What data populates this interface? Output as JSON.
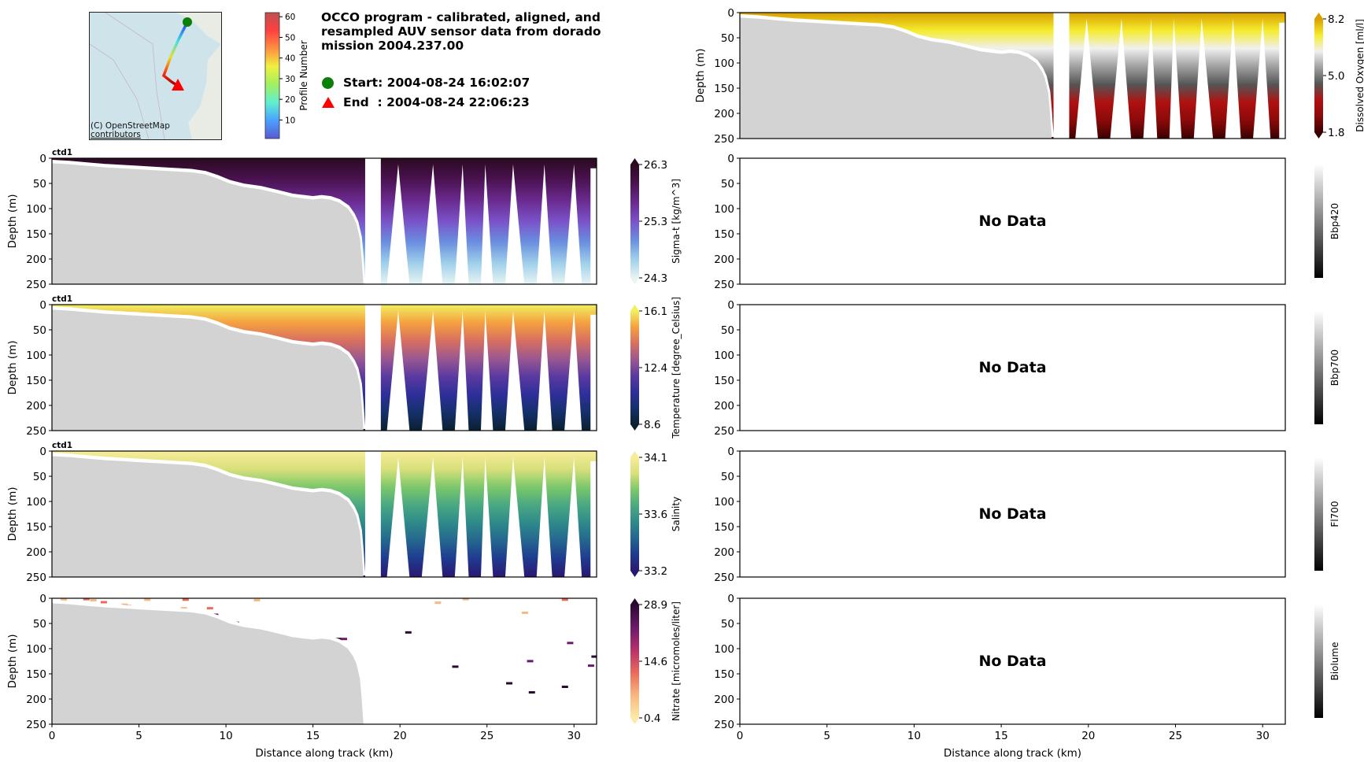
{
  "header": {
    "title": "OCCO program - calibrated, aligned, and resampled AUV sensor data from dorado mission 2004.237.00",
    "start_label": "Start: 2004-08-24 16:02:07",
    "end_label": "End  : 2004-08-24 22:06:23",
    "start_marker_color": "#0a800a",
    "end_marker_color": "#ff0000"
  },
  "map": {
    "credit_line1": "(C) OpenStreetMap",
    "credit_line2": "contributors",
    "colorbar_label": "Profile Number",
    "colorbar_ticks": [
      "10",
      "20",
      "30",
      "40",
      "50",
      "60"
    ],
    "colorbar_range": [
      1,
      62
    ]
  },
  "chart_data": [
    {
      "type": "heatmap",
      "id": "dissolved_oxygen",
      "panel_label": "",
      "xlabel": "",
      "ylabel": "Depth (m)",
      "xlim": [
        0,
        31.3
      ],
      "ylim": [
        250,
        0
      ],
      "yticks": [
        "0",
        "50",
        "100",
        "150",
        "200",
        "250"
      ],
      "xticks": [],
      "colorbar_label": "Dissolved Oxygen [ml/l]",
      "colorbar_ticks": [
        "8.2",
        "5.0",
        "1.8"
      ],
      "colorbar_range": [
        1.8,
        8.2
      ],
      "colormap": [
        "#3a0000",
        "#8b0a0a",
        "#b01010",
        "#555555",
        "#a0a0a0",
        "#f0f0f0",
        "#f5ec2e",
        "#d9a000"
      ],
      "no_data": false,
      "has_data": true
    },
    {
      "type": "heatmap",
      "id": "sigma_t",
      "panel_label": "ctd1",
      "ylabel": "Depth (m)",
      "xlim": [
        0,
        31.3
      ],
      "ylim": [
        250,
        0
      ],
      "yticks": [
        "0",
        "50",
        "100",
        "150",
        "200",
        "250"
      ],
      "colorbar_label": "Sigma-t [kg/m^3]",
      "colorbar_ticks": [
        "26.3",
        "25.3",
        "24.3"
      ],
      "colorbar_range": [
        24.3,
        26.3
      ],
      "colormap": [
        "#e8f4f4",
        "#9fd0ea",
        "#6a8fe0",
        "#7a52c8",
        "#6a2a8e",
        "#4a1250",
        "#2a0a20"
      ],
      "has_data": true
    },
    {
      "type": "heatmap",
      "id": "temperature",
      "panel_label": "ctd1",
      "ylabel": "Depth (m)",
      "xlim": [
        0,
        31.3
      ],
      "ylim": [
        250,
        0
      ],
      "yticks": [
        "0",
        "50",
        "100",
        "150",
        "200",
        "250"
      ],
      "colorbar_label": "Temperature [degree_Celsius]",
      "colorbar_ticks": [
        "16.1",
        "12.4",
        "8.6"
      ],
      "colorbar_range": [
        8.6,
        16.1
      ],
      "colormap": [
        "#0a2030",
        "#15306a",
        "#2e2f9a",
        "#5a3aa0",
        "#9a5890",
        "#d87060",
        "#f5a040",
        "#f0f060"
      ],
      "has_data": true
    },
    {
      "type": "heatmap",
      "id": "salinity",
      "panel_label": "ctd1",
      "ylabel": "Depth (m)",
      "xlim": [
        0,
        31.3
      ],
      "ylim": [
        250,
        0
      ],
      "yticks": [
        "0",
        "50",
        "100",
        "150",
        "200",
        "250"
      ],
      "colorbar_label": "Salinity",
      "colorbar_ticks": [
        "34.1",
        "33.6",
        "33.2"
      ],
      "colorbar_range": [
        33.2,
        34.1
      ],
      "colormap": [
        "#2a1870",
        "#1f3a8f",
        "#24658f",
        "#2e8a8a",
        "#4aa882",
        "#7cc86a",
        "#d8e07a",
        "#f8ec9a"
      ],
      "has_data": true
    },
    {
      "type": "heatmap",
      "id": "nitrate",
      "panel_label": "",
      "xlabel": "Distance along track (km)",
      "ylabel": "Depth (m)",
      "xlim": [
        0,
        31.3
      ],
      "ylim": [
        250,
        0
      ],
      "xticks": [
        "0",
        "5",
        "10",
        "15",
        "20",
        "25",
        "30"
      ],
      "yticks": [
        "0",
        "50",
        "100",
        "150",
        "200",
        "250"
      ],
      "colorbar_label": "Nitrate [micromoles/liter]",
      "colorbar_ticks": [
        "28.9",
        "14.6",
        "0.4"
      ],
      "colorbar_range": [
        0.4,
        28.9
      ],
      "colormap": [
        "#fdeaa8",
        "#f8b880",
        "#ea6a5a",
        "#b8306a",
        "#6a1a6a",
        "#2a0a30"
      ],
      "has_data": true,
      "sparse_points_km_m": [
        [
          0.5,
          2
        ],
        [
          1.8,
          1
        ],
        [
          2.2,
          3
        ],
        [
          2.8,
          7
        ],
        [
          4.0,
          12
        ],
        [
          4.2,
          15
        ],
        [
          5.3,
          2
        ],
        [
          5.4,
          20
        ],
        [
          6.2,
          22
        ],
        [
          7.5,
          2
        ],
        [
          7.4,
          19
        ],
        [
          8.9,
          19
        ],
        [
          9.2,
          32
        ],
        [
          10.4,
          48
        ],
        [
          11.6,
          3
        ],
        [
          16.3,
          80
        ],
        [
          16.6,
          80
        ],
        [
          20.3,
          67
        ],
        [
          22.0,
          8
        ],
        [
          23.0,
          135
        ],
        [
          23.6,
          1
        ],
        [
          26.1,
          168
        ],
        [
          27.0,
          28
        ],
        [
          27.4,
          186
        ],
        [
          27.3,
          124
        ],
        [
          29.3,
          2
        ],
        [
          29.6,
          88
        ],
        [
          29.3,
          175
        ],
        [
          30.8,
          133
        ],
        [
          31.0,
          115
        ]
      ]
    },
    {
      "type": "heatmap",
      "id": "bbp420",
      "ylabel": "",
      "xlim": [
        0,
        31.3
      ],
      "ylim": [
        250,
        0
      ],
      "yticks": [
        "0",
        "50",
        "100",
        "150",
        "200",
        "250"
      ],
      "colorbar_label": "Bbp420",
      "colorbar_ticks": [],
      "colormap": [
        "#000000",
        "#ffffff"
      ],
      "has_data": false,
      "no_data_text": "No Data"
    },
    {
      "type": "heatmap",
      "id": "bbp700",
      "ylabel": "",
      "xlim": [
        0,
        31.3
      ],
      "ylim": [
        250,
        0
      ],
      "yticks": [
        "0",
        "50",
        "100",
        "150",
        "200",
        "250"
      ],
      "colorbar_label": "Bbp700",
      "colorbar_ticks": [],
      "colormap": [
        "#000000",
        "#ffffff"
      ],
      "has_data": false,
      "no_data_text": "No Data"
    },
    {
      "type": "heatmap",
      "id": "fl700",
      "ylabel": "",
      "xlim": [
        0,
        31.3
      ],
      "ylim": [
        250,
        0
      ],
      "yticks": [
        "0",
        "50",
        "100",
        "150",
        "200",
        "250"
      ],
      "colorbar_label": "Fl700",
      "colorbar_ticks": [],
      "colormap": [
        "#000000",
        "#ffffff"
      ],
      "has_data": false,
      "no_data_text": "No Data"
    },
    {
      "type": "heatmap",
      "id": "biolume",
      "xlabel": "Distance along track (km)",
      "ylabel": "",
      "xlim": [
        0,
        31.3
      ],
      "ylim": [
        250,
        0
      ],
      "xticks": [
        "0",
        "5",
        "10",
        "15",
        "20",
        "25",
        "30"
      ],
      "yticks": [
        "0",
        "50",
        "100",
        "150",
        "200",
        "250"
      ],
      "colorbar_label": "Biolume",
      "colorbar_ticks": [],
      "colormap": [
        "#000000",
        "#ffffff"
      ],
      "has_data": false,
      "no_data_text": "No Data"
    }
  ],
  "bathymetry_km_m": [
    [
      0,
      10
    ],
    [
      1,
      12
    ],
    [
      2,
      15
    ],
    [
      3,
      18
    ],
    [
      4,
      20
    ],
    [
      5,
      22
    ],
    [
      6,
      24
    ],
    [
      7,
      26
    ],
    [
      8,
      28
    ],
    [
      8.8,
      32
    ],
    [
      9.5,
      40
    ],
    [
      10.2,
      50
    ],
    [
      11,
      57
    ],
    [
      12,
      62
    ],
    [
      13,
      70
    ],
    [
      13.8,
      77
    ],
    [
      14.5,
      80
    ],
    [
      15,
      82
    ],
    [
      15.5,
      80
    ],
    [
      16,
      82
    ],
    [
      16.5,
      88
    ],
    [
      17,
      100
    ],
    [
      17.3,
      115
    ],
    [
      17.5,
      130
    ],
    [
      17.7,
      160
    ],
    [
      17.8,
      200
    ],
    [
      17.9,
      250
    ]
  ],
  "yo_bottoms_km": [
    18.9,
    20.9,
    22.8,
    24.3,
    25.7,
    27.5,
    29.1,
    30.8
  ],
  "yo_tops_km": [
    19.9,
    21.9,
    23.6,
    24.9,
    26.5,
    28.3,
    30.0
  ]
}
